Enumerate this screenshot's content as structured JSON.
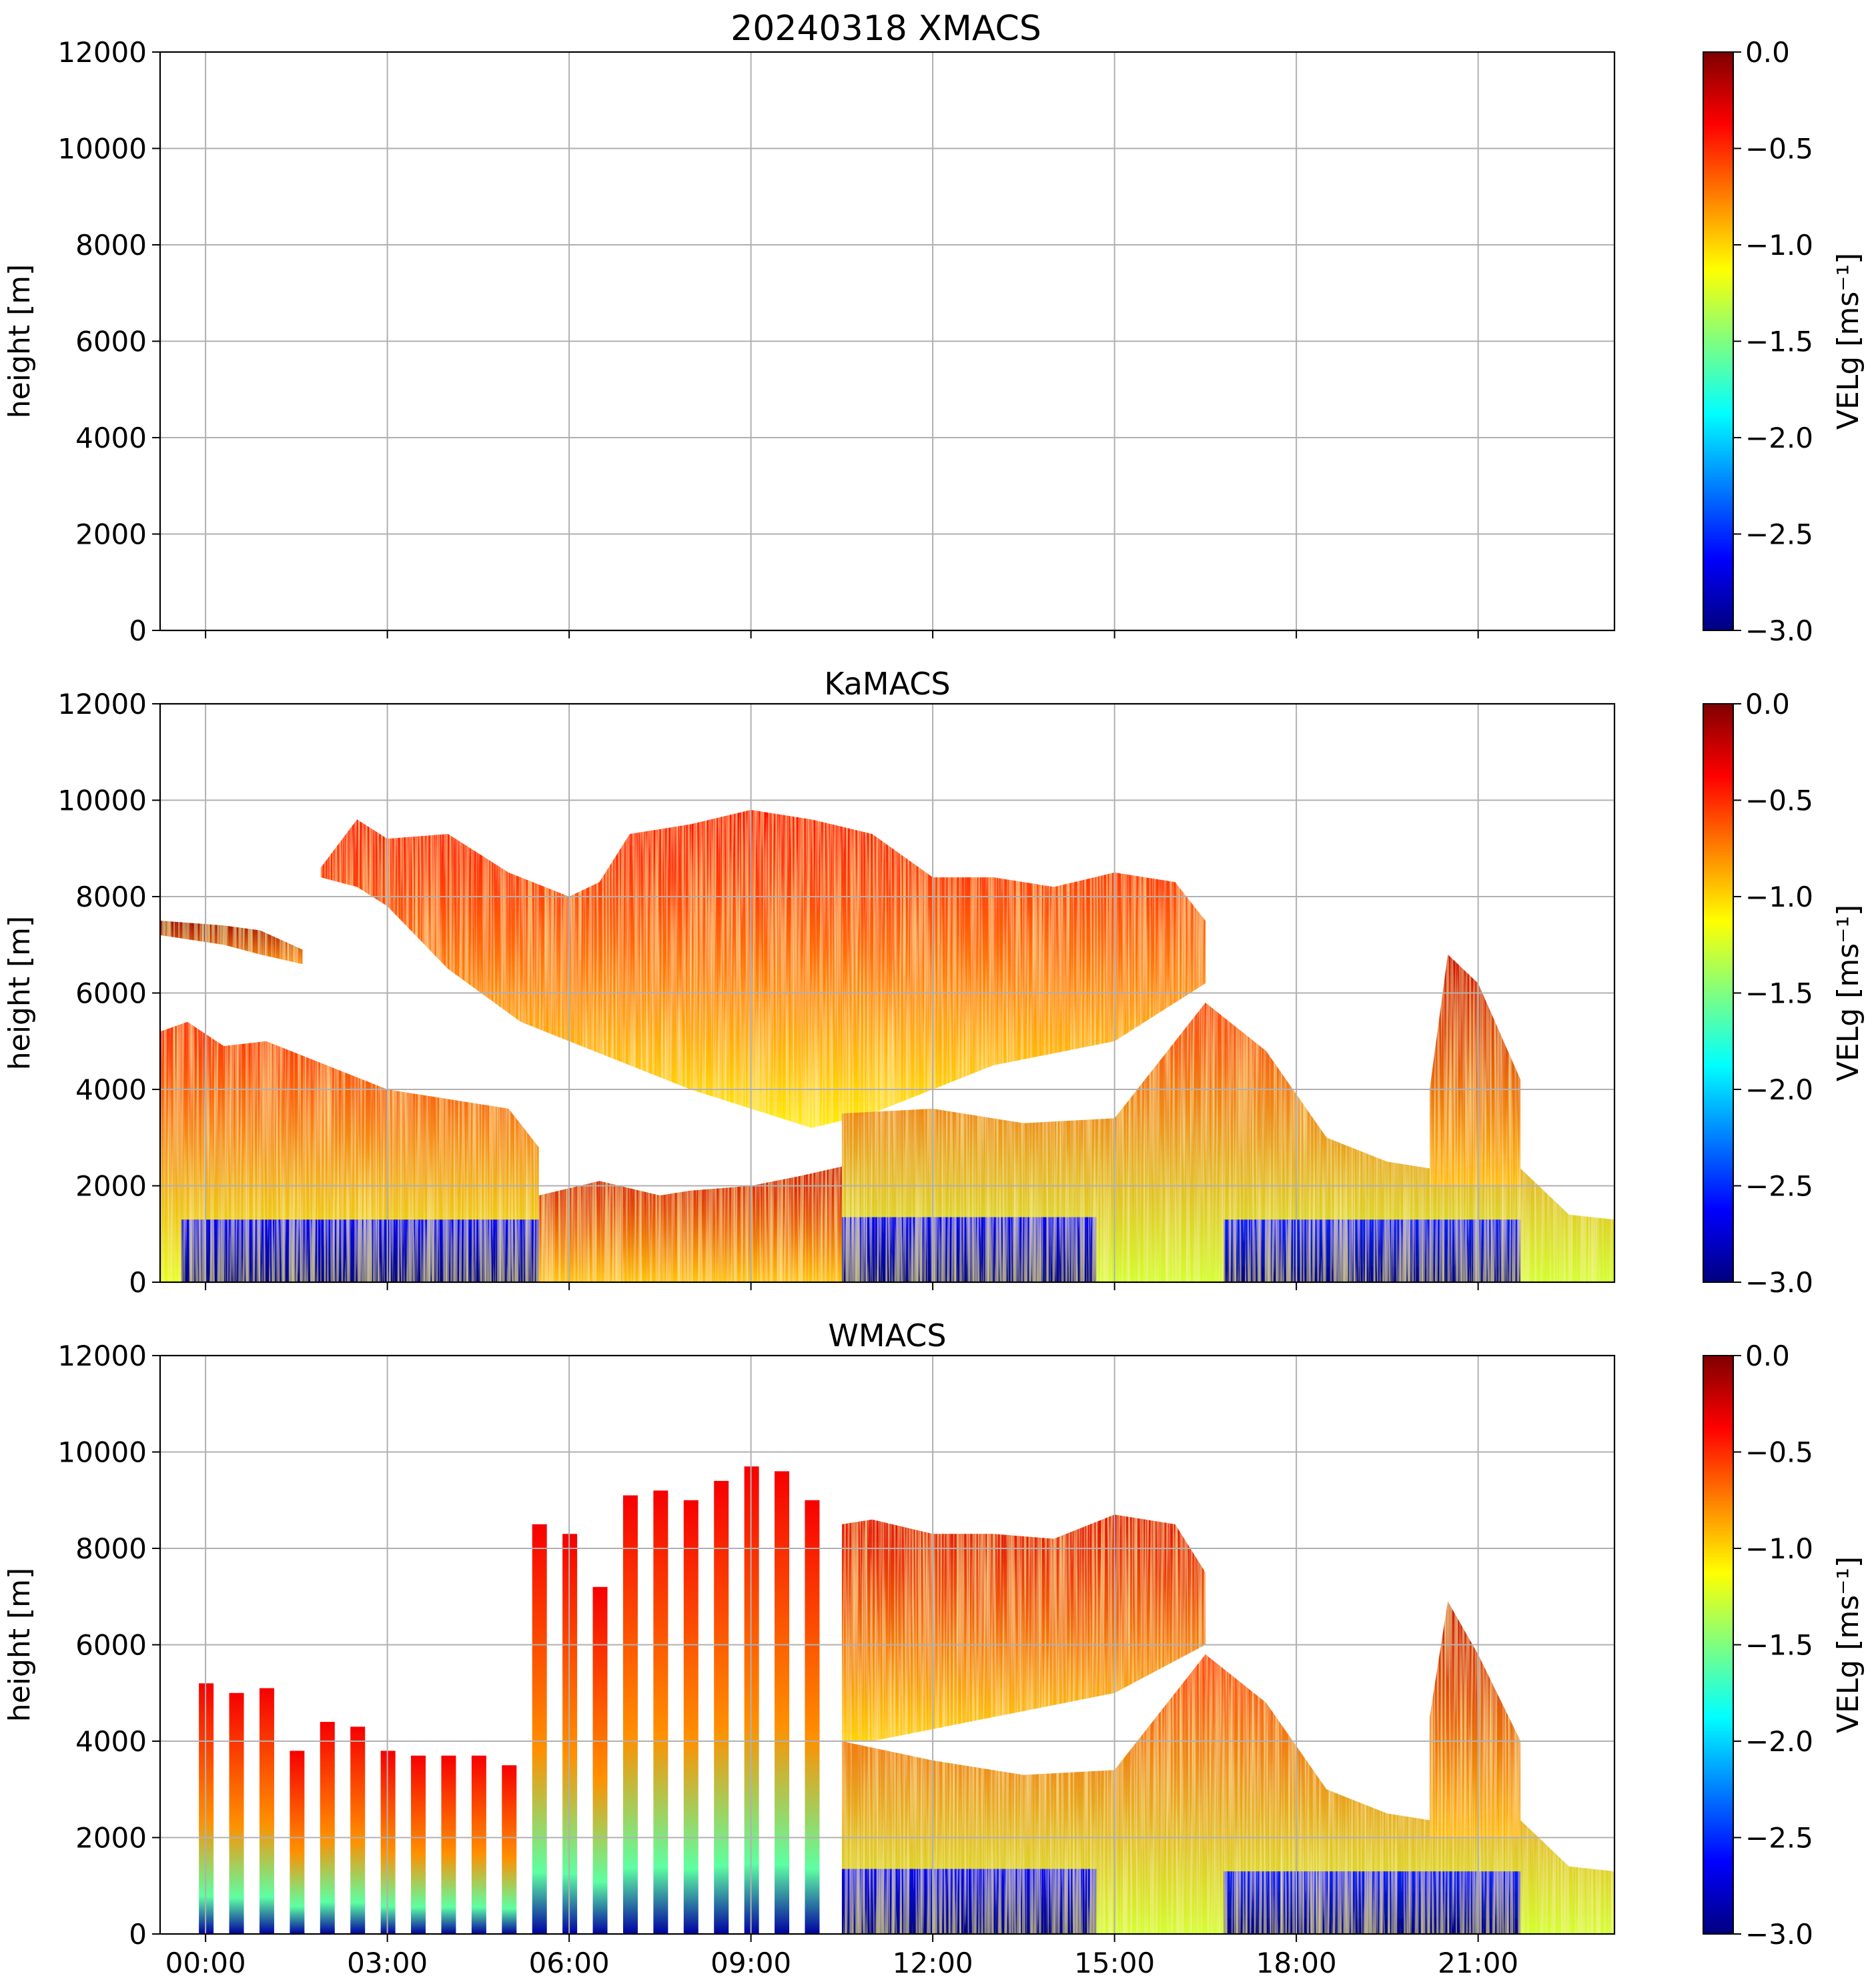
{
  "figure_title": "20240318 XMACS",
  "chart_data": [
    {
      "type": "heatmap",
      "panel": "XMACS",
      "title": "20240318 XMACS",
      "xlabel": "",
      "ylabel": "height [m]",
      "ylim": [
        0,
        12000
      ],
      "xlim_hours": [
        -0.75,
        23.25
      ],
      "y_ticks": [
        0,
        2000,
        4000,
        6000,
        8000,
        10000,
        12000
      ],
      "x_ticks_hours": [
        0,
        3,
        6,
        9,
        12,
        15,
        18,
        21
      ],
      "x_tick_labels": [],
      "grid": true,
      "colorbar": {
        "label": "VELg [ms⁻¹]",
        "range": [
          -3.0,
          0.0
        ],
        "ticks": [
          "0.0",
          "−0.5",
          "−1.0",
          "−1.5",
          "−2.0",
          "−2.5",
          "−3.0"
        ],
        "colormap": "jet"
      },
      "regions": []
    },
    {
      "type": "heatmap",
      "panel": "KaMACS",
      "title": "KaMACS",
      "xlabel": "",
      "ylabel": "height [m]",
      "ylim": [
        0,
        12000
      ],
      "xlim_hours": [
        -0.75,
        23.25
      ],
      "y_ticks": [
        0,
        2000,
        4000,
        6000,
        8000,
        10000,
        12000
      ],
      "x_ticks_hours": [
        0,
        3,
        6,
        9,
        12,
        15,
        18,
        21
      ],
      "x_tick_labels": [],
      "grid": true,
      "colorbar": {
        "label": "VELg [ms⁻¹]",
        "range": [
          -3.0,
          0.0
        ],
        "ticks": [
          "0.0",
          "−0.5",
          "−1.0",
          "−1.5",
          "−2.0",
          "−2.5",
          "−3.0"
        ],
        "colormap": "jet"
      },
      "regions": [
        {
          "name": "upper-cloud",
          "h": [
            1.9,
            2.5,
            3.0,
            4.0,
            5.0,
            6.0,
            6.5,
            7.0,
            8.0,
            9.0,
            10.0,
            11.0,
            12.0,
            13.0,
            14.0,
            15.0,
            16.0,
            16.5,
            16.5,
            15.0,
            13.0,
            11.0,
            10.0,
            9.0,
            8.0,
            7.0,
            6.0,
            5.2,
            4.0,
            3.0,
            2.5,
            1.9
          ],
          "top": [
            8600,
            9600,
            9200,
            9300,
            8500,
            8000,
            8300,
            9300,
            9500,
            9800,
            9600,
            9300,
            8400,
            8400,
            8200,
            8500,
            8300,
            7500,
            6200,
            5000,
            4500,
            3500,
            3200,
            3600,
            4000,
            4500,
            5000,
            5400,
            6500,
            7800,
            8200,
            8400
          ],
          "vel": [
            -0.35,
            -0.45,
            -0.55,
            -0.5,
            -0.6,
            -0.7,
            -0.6,
            -0.5,
            -0.45,
            -0.45,
            -0.5,
            -0.45,
            -0.4,
            -0.5,
            -0.5,
            -0.5,
            -0.35,
            -0.35,
            -0.45,
            -0.6,
            -0.8,
            -0.9,
            -1.0,
            -1.2,
            -1.4,
            -1.2,
            -1.0,
            -0.9,
            -0.7,
            -0.5,
            -0.4,
            -0.35
          ]
        },
        {
          "name": "thin-layer-early",
          "h": [
            -0.75,
            0.3,
            0.9,
            1.6,
            1.6,
            0.9,
            0.3,
            -0.75
          ],
          "top": [
            7500,
            7400,
            7300,
            6900,
            6600,
            6800,
            7000,
            7200
          ],
          "vel": [
            -0.3,
            -0.35,
            -0.4,
            -0.4,
            -0.4,
            -0.35,
            -0.3,
            -0.3
          ]
        },
        {
          "name": "low-cloud-early",
          "h": [
            -0.75,
            -0.3,
            0.3,
            1.0,
            2.0,
            3.0,
            4.0,
            5.0,
            5.5,
            5.5,
            4.5,
            3.0,
            1.5,
            0.5,
            -0.75
          ],
          "top": [
            5200,
            5400,
            4900,
            5000,
            4500,
            4000,
            3800,
            3600,
            2800,
            0,
            0,
            0,
            0,
            0,
            0
          ],
          "vel": [
            -0.4,
            -0.5,
            -0.6,
            -0.8,
            -1.0,
            -1.0,
            -0.9,
            -0.8,
            -0.6,
            -0.6,
            -0.8,
            -1.0,
            -0.9,
            -0.7,
            -0.5
          ]
        },
        {
          "name": "low-cloud-mid",
          "h": [
            5.5,
            6.5,
            7.5,
            8.0,
            9.0,
            9.8,
            10.5,
            10.5,
            9.0,
            7.5,
            6.0,
            5.5
          ],
          "top": [
            1800,
            2100,
            1800,
            1900,
            2000,
            2200,
            2400,
            0,
            0,
            0,
            0,
            0
          ],
          "vel": [
            -0.3,
            -0.6,
            -0.5,
            -0.3,
            -0.4,
            -0.5,
            -0.8,
            -0.8,
            -0.6,
            -0.5,
            -0.4,
            -0.3
          ]
        },
        {
          "name": "low-cloud-late",
          "h": [
            10.5,
            12.0,
            13.5,
            15.0,
            16.5,
            17.5,
            18.5,
            19.5,
            20.5,
            21.5,
            22.5,
            23.25,
            23.25,
            21.5,
            19.5,
            17.5,
            15.0,
            12.5,
            10.5
          ],
          "top": [
            3500,
            3600,
            3300,
            3400,
            5800,
            4800,
            3000,
            2500,
            2300,
            2600,
            1400,
            1300,
            0,
            0,
            0,
            0,
            0,
            0,
            0
          ],
          "vel": [
            -0.9,
            -1.0,
            -1.1,
            -1.2,
            -1.0,
            -1.0,
            -0.9,
            -0.6,
            -0.5,
            -0.5,
            -0.3,
            -0.3,
            -0.4,
            -0.6,
            -0.8,
            -1.0,
            -1.2,
            -1.1,
            -0.9
          ]
        },
        {
          "name": "convective-tower",
          "h": [
            20.2,
            20.5,
            21.0,
            21.7,
            21.7,
            21.0,
            20.2
          ],
          "top": [
            4000,
            6800,
            6200,
            4200,
            2000,
            2000,
            2000
          ],
          "vel": [
            -0.5,
            -0.4,
            -0.3,
            -0.5,
            -0.6,
            -0.6,
            -0.5
          ]
        },
        {
          "name": "rain-shaft-1",
          "h": [
            -0.4,
            5.5,
            5.5,
            -0.4
          ],
          "top": [
            1300,
            1300,
            0,
            0
          ],
          "vel": [
            -2.9,
            -2.9,
            -2.9,
            -2.9
          ]
        },
        {
          "name": "rain-shaft-2",
          "h": [
            10.5,
            14.7,
            14.7,
            10.5
          ],
          "top": [
            1350,
            1350,
            0,
            0
          ],
          "vel": [
            -2.9,
            -2.9,
            -2.9,
            -2.9
          ]
        },
        {
          "name": "rain-shaft-3",
          "h": [
            16.8,
            21.7,
            21.7,
            16.8
          ],
          "top": [
            1300,
            1300,
            0,
            0
          ],
          "vel": [
            -2.8,
            -2.8,
            -2.8,
            -2.8
          ]
        }
      ]
    },
    {
      "type": "heatmap",
      "panel": "WMACS",
      "title": "WMACS",
      "xlabel": "",
      "ylabel": "height [m]",
      "ylim": [
        0,
        12000
      ],
      "xlim_hours": [
        -0.75,
        23.25
      ],
      "y_ticks": [
        0,
        2000,
        4000,
        6000,
        8000,
        10000,
        12000
      ],
      "x_ticks_hours": [
        0,
        3,
        6,
        9,
        12,
        15,
        18,
        21
      ],
      "x_tick_labels": [
        "00:00",
        "03:00",
        "06:00",
        "09:00",
        "12:00",
        "15:00",
        "18:00",
        "21:00"
      ],
      "grid": true,
      "colorbar": {
        "label": "VELg [ms⁻¹]",
        "range": [
          -3.0,
          0.0
        ],
        "ticks": [
          "0.0",
          "−0.5",
          "−1.0",
          "−1.5",
          "−2.0",
          "−2.5",
          "−3.0"
        ],
        "colormap": "jet"
      },
      "stripes_hours": [
        0.0,
        0.5,
        1.0,
        1.5,
        2.0,
        2.5,
        3.0,
        3.5,
        4.0,
        4.5,
        5.0,
        5.5,
        6.0,
        6.5,
        7.0,
        7.5,
        8.0,
        8.5,
        9.0,
        9.5,
        10.0
      ],
      "stripe_tops": [
        5200,
        5000,
        5100,
        3800,
        4400,
        4300,
        3800,
        3700,
        3700,
        3700,
        3500,
        8500,
        8300,
        7200,
        9100,
        9200,
        9000,
        9400,
        9700,
        9600,
        9000
      ],
      "regions": [
        {
          "name": "upper-cloud",
          "h": [
            10.5,
            11.0,
            12.0,
            13.0,
            14.0,
            15.0,
            16.0,
            16.5,
            16.5,
            15.0,
            13.0,
            11.0,
            10.5
          ],
          "top": [
            8500,
            8600,
            8300,
            8300,
            8200,
            8700,
            8500,
            7500,
            6000,
            5000,
            4500,
            4000,
            4000
          ],
          "vel": [
            -0.4,
            -0.45,
            -0.5,
            -0.5,
            -0.5,
            -0.45,
            -0.4,
            -0.4,
            -0.6,
            -0.7,
            -0.8,
            -0.8,
            -0.6
          ]
        },
        {
          "name": "low-cloud-late",
          "h": [
            10.5,
            12.0,
            13.5,
            15.0,
            16.5,
            17.5,
            18.5,
            19.5,
            20.5,
            21.5,
            22.5,
            23.25,
            23.25,
            21.5,
            19.5,
            17.5,
            15.0,
            12.5,
            10.5
          ],
          "top": [
            4000,
            3600,
            3300,
            3400,
            5800,
            4800,
            3000,
            2500,
            2300,
            2600,
            1400,
            1300,
            0,
            0,
            0,
            0,
            0,
            0,
            0
          ],
          "vel": [
            -0.9,
            -1.0,
            -1.1,
            -1.2,
            -1.0,
            -1.0,
            -0.9,
            -0.6,
            -0.5,
            -0.5,
            -0.3,
            -0.3,
            -0.4,
            -0.6,
            -0.8,
            -1.0,
            -1.2,
            -1.1,
            -0.9
          ]
        },
        {
          "name": "convective-tower",
          "h": [
            20.2,
            20.5,
            21.0,
            21.7,
            21.7,
            21.0,
            20.2
          ],
          "top": [
            4500,
            6900,
            5800,
            4000,
            2000,
            2000,
            2000
          ],
          "vel": [
            -0.5,
            -0.4,
            -0.3,
            -0.5,
            -0.6,
            -0.6,
            -0.5
          ]
        },
        {
          "name": "rain-shaft-2",
          "h": [
            10.5,
            14.7,
            14.7,
            10.5
          ],
          "top": [
            1350,
            1350,
            0,
            0
          ],
          "vel": [
            -2.9,
            -2.9,
            -2.9,
            -2.9
          ]
        },
        {
          "name": "rain-shaft-3",
          "h": [
            16.8,
            21.7,
            21.7,
            16.8
          ],
          "top": [
            1300,
            1300,
            0,
            0
          ],
          "vel": [
            -2.8,
            -2.8,
            -2.8,
            -2.8
          ]
        }
      ]
    }
  ]
}
